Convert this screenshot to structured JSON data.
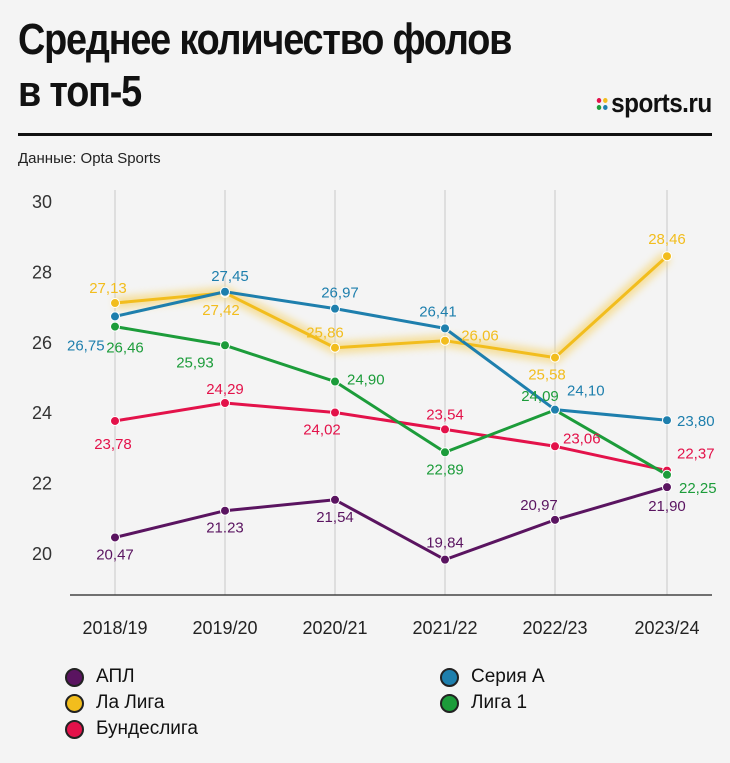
{
  "header": {
    "title_line1": "Среднее количество фолов",
    "title_line2": "в топ-5",
    "brand": "sports.ru",
    "source": "Данные: Opta Sports"
  },
  "colors": {
    "apl": "#5a1460",
    "laliga": "#f2bd1d",
    "bundesliga": "#e3124a",
    "seriea": "#1e7fad",
    "ligue1": "#1c9c3a"
  },
  "chart_data": {
    "type": "line",
    "title": "Среднее количество фолов в топ-5",
    "x": [
      "2018/19",
      "2019/20",
      "2020/21",
      "2021/22",
      "2022/23",
      "2023/24"
    ],
    "ylim": [
      19,
      30
    ],
    "yticks": [
      "30",
      "28",
      "26",
      "24",
      "22",
      "20"
    ],
    "grid": "vertical",
    "series": [
      {
        "key": "apl",
        "name": "АПЛ",
        "values": [
          20.47,
          21.23,
          21.54,
          19.84,
          20.97,
          21.9
        ],
        "labels": [
          "20,47",
          "21.23",
          "21,54",
          "19,84",
          "20,97",
          "21,90"
        ]
      },
      {
        "key": "laliga",
        "name": "Ла Лига",
        "values": [
          27.13,
          27.42,
          25.86,
          26.06,
          25.58,
          28.46
        ],
        "labels": [
          "27,13",
          "27,42",
          "25,86",
          "26,06",
          "25,58",
          "28,46"
        ]
      },
      {
        "key": "bundesliga",
        "name": "Бундеслига",
        "values": [
          23.78,
          24.29,
          24.02,
          23.54,
          23.06,
          22.37
        ],
        "labels": [
          "23,78",
          "24,29",
          "24,02",
          "23,54",
          "23,06",
          "22,37"
        ]
      },
      {
        "key": "seriea",
        "name": "Серия А",
        "values": [
          26.75,
          27.45,
          26.97,
          26.41,
          24.1,
          23.8
        ],
        "labels": [
          "26,75",
          "27,45",
          "26,97",
          "26,41",
          "24,10",
          "23,80"
        ]
      },
      {
        "key": "ligue1",
        "name": "Лига 1",
        "values": [
          26.46,
          25.93,
          24.9,
          22.89,
          24.09,
          22.25
        ],
        "labels": [
          "26,46",
          "25,93",
          "24,90",
          "22,89",
          "24,09",
          "22,25"
        ]
      }
    ]
  },
  "legend": [
    {
      "key": "apl",
      "label": "АПЛ"
    },
    {
      "key": "laliga",
      "label": "Ла Лига"
    },
    {
      "key": "bundesliga",
      "label": "Бундеслига"
    },
    {
      "key": "seriea",
      "label": "Серия А"
    },
    {
      "key": "ligue1",
      "label": "Лига 1"
    }
  ]
}
